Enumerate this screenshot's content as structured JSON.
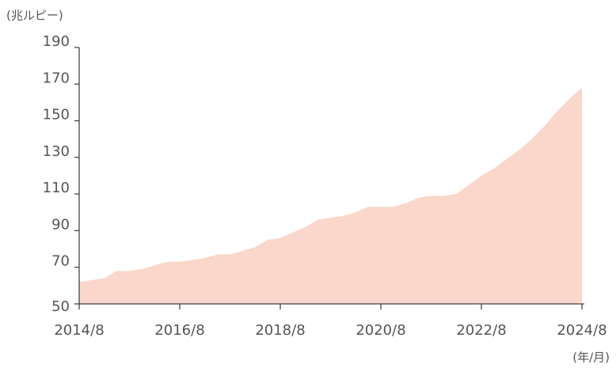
{
  "chart_data": {
    "type": "area",
    "y_unit": "(兆ルピー)",
    "x_unit": "(年/月)",
    "color": "#fad7ca",
    "x": [
      "2014/8",
      "2014/11",
      "2015/2",
      "2015/5",
      "2015/8",
      "2015/11",
      "2016/2",
      "2016/5",
      "2016/8",
      "2016/11",
      "2017/2",
      "2017/5",
      "2017/8",
      "2017/11",
      "2018/2",
      "2018/5",
      "2018/8",
      "2018/11",
      "2019/2",
      "2019/5",
      "2019/8",
      "2019/11",
      "2020/2",
      "2020/5",
      "2020/8",
      "2020/11",
      "2021/2",
      "2021/5",
      "2021/8",
      "2021/11",
      "2022/2",
      "2022/5",
      "2022/8",
      "2022/11",
      "2023/2",
      "2023/5",
      "2023/8",
      "2023/11",
      "2024/2",
      "2024/5",
      "2024/8"
    ],
    "values": [
      62,
      63,
      64,
      68,
      68,
      69,
      71,
      73,
      73,
      74,
      75,
      77,
      77,
      79,
      81,
      85,
      86,
      89,
      92,
      96,
      97,
      98,
      100,
      103,
      103,
      103,
      105,
      108,
      109,
      109,
      110,
      115,
      120,
      124,
      129,
      134,
      140,
      147,
      155,
      162,
      168
    ],
    "ylim": [
      50,
      190
    ],
    "yticks": [
      50,
      70,
      90,
      110,
      130,
      150,
      170,
      190
    ],
    "xticks": [
      "2014/8",
      "2016/8",
      "2018/8",
      "2020/8",
      "2022/8",
      "2024/8"
    ]
  }
}
